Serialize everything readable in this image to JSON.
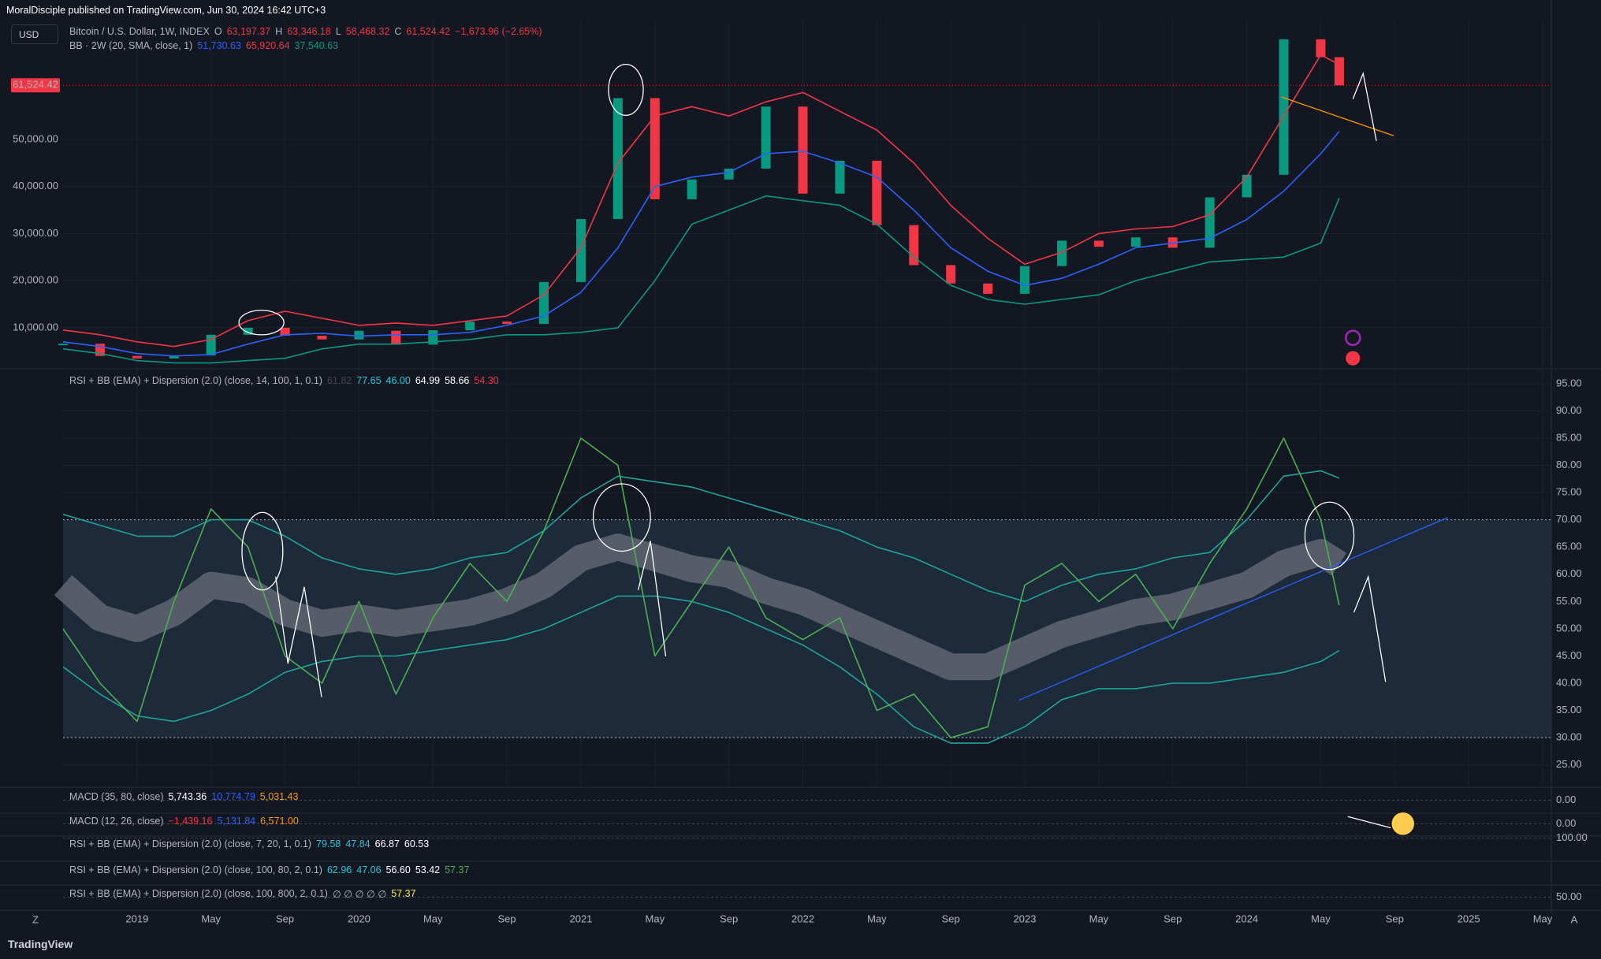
{
  "header": {
    "text": "MoralDisciple published on TradingView.com, Jun 30, 2024 16:42 UTC+3"
  },
  "toolbar": {
    "currency": "USD"
  },
  "footer": {
    "brand": "TradingView",
    "zoom_button": "Z",
    "scale_button": "A"
  },
  "chart_data": [
    {
      "type": "price",
      "x": [
        "2018-09",
        "2018-11",
        "2019-01",
        "2019-03",
        "2019-05",
        "2019-07",
        "2019-09",
        "2019-11",
        "2020-01",
        "2020-03",
        "2020-05",
        "2020-07",
        "2020-09",
        "2020-11",
        "2021-01",
        "2021-03",
        "2021-05",
        "2021-07",
        "2021-09",
        "2021-11",
        "2022-01",
        "2022-03",
        "2022-05",
        "2022-07",
        "2022-09",
        "2022-11",
        "2023-01",
        "2023-03",
        "2023-05",
        "2023-07",
        "2023-09",
        "2023-11",
        "2024-01",
        "2024-03",
        "2024-05",
        "2024-06"
      ],
      "xlim": [
        "2018-09",
        "2025-05"
      ],
      "xticks": [
        {
          "value": "2019-01",
          "label": "2019"
        },
        {
          "value": "2019-05",
          "label": "May"
        },
        {
          "value": "2019-09",
          "label": "Sep"
        },
        {
          "value": "2020-01",
          "label": "2020"
        },
        {
          "value": "2020-05",
          "label": "May"
        },
        {
          "value": "2020-09",
          "label": "Sep"
        },
        {
          "value": "2021-01",
          "label": "2021"
        },
        {
          "value": "2021-05",
          "label": "May"
        },
        {
          "value": "2021-09",
          "label": "Sep"
        },
        {
          "value": "2022-01",
          "label": "2022"
        },
        {
          "value": "2022-05",
          "label": "May"
        },
        {
          "value": "2022-09",
          "label": "Sep"
        },
        {
          "value": "2023-01",
          "label": "2023"
        },
        {
          "value": "2023-05",
          "label": "May"
        },
        {
          "value": "2023-09",
          "label": "Sep"
        },
        {
          "value": "2024-01",
          "label": "2024"
        },
        {
          "value": "2024-05",
          "label": "May"
        },
        {
          "value": "2024-09",
          "label": "Sep"
        },
        {
          "value": "2025-01",
          "label": "2025"
        },
        {
          "value": "2025-05",
          "label": "May"
        }
      ],
      "ylim": [
        1600,
        75300
      ],
      "yticks": [
        {
          "value": 10000,
          "label": "10,000.00"
        },
        {
          "value": 20000,
          "label": "20,000.00"
        },
        {
          "value": 30000,
          "label": "30,000.00"
        },
        {
          "value": 40000,
          "label": "40,000.00"
        },
        {
          "value": 50000,
          "label": "50,000.00"
        }
      ],
      "last_price": {
        "value": 61524.42,
        "label": "61,524.42"
      },
      "last_price_color": "#f23645",
      "up_color": "#089981",
      "down_color": "#f23645",
      "legend": [
        [
          {
            "text": "Bitcoin / U.S. Dollar, 1W, INDEX",
            "color": "#b2b5be"
          },
          {
            "text": "O",
            "color": "#b2b5be"
          },
          {
            "text": "63,197.37",
            "color": "#f23645"
          },
          {
            "text": "H",
            "color": "#b2b5be"
          },
          {
            "text": "63,346.18",
            "color": "#f23645"
          },
          {
            "text": "L",
            "color": "#b2b5be"
          },
          {
            "text": "58,468.32",
            "color": "#f23645"
          },
          {
            "text": "C",
            "color": "#b2b5be"
          },
          {
            "text": "61,524.42",
            "color": "#f23645"
          },
          {
            "text": "−1,673.96 (−2.65%)",
            "color": "#f23645"
          }
        ],
        [
          {
            "text": "BB · 2W (20, SMA, close, 1)",
            "color": "#b2b5be"
          },
          {
            "text": "51,730.63",
            "color": "#2962ff"
          },
          {
            "text": "65,920.64",
            "color": "#f23645"
          },
          {
            "text": "37,540.63",
            "color": "#089981"
          }
        ]
      ],
      "series": [
        {
          "style": "candles",
          "values": [
            6600,
            4000,
            3450,
            4100,
            8500,
            10000,
            8300,
            7500,
            9350,
            6400,
            9450,
            11300,
            10800,
            19700,
            33100,
            58800,
            37300,
            41500,
            43800,
            57000,
            38500,
            45500,
            31800,
            23300,
            19400,
            17200,
            23100,
            28500,
            27200,
            29200,
            27000,
            37700,
            42500,
            71300,
            67500,
            61524.42
          ]
        },
        {
          "color": "#2962ff",
          "values": [
            7000,
            6000,
            4500,
            4000,
            4300,
            6500,
            8500,
            8800,
            8200,
            8500,
            8500,
            9000,
            10500,
            12500,
            17500,
            27000,
            40000,
            42000,
            43000,
            47000,
            47500,
            45000,
            42000,
            35000,
            27000,
            22000,
            19000,
            20500,
            23500,
            27000,
            28000,
            29000,
            33000,
            39000,
            47000,
            51730.63
          ]
        },
        {
          "color": "#f23645",
          "values": [
            9500,
            8500,
            7000,
            6000,
            7500,
            11500,
            13500,
            12000,
            10500,
            11000,
            10500,
            11500,
            12500,
            17000,
            27000,
            45000,
            55000,
            57000,
            55000,
            58000,
            60000,
            56000,
            52000,
            45000,
            36000,
            29000,
            23500,
            26000,
            30000,
            31000,
            31500,
            34000,
            42000,
            55000,
            68000,
            65920.64
          ]
        },
        {
          "color": "#089981",
          "values": [
            5500,
            4500,
            3000,
            2500,
            2500,
            3000,
            3500,
            5500,
            6500,
            6500,
            7000,
            7500,
            8500,
            8500,
            9000,
            10000,
            20000,
            32000,
            35000,
            38000,
            37000,
            36000,
            32000,
            25000,
            19000,
            16000,
            15000,
            16000,
            17000,
            20000,
            22000,
            24000,
            24500,
            25000,
            28000,
            37540.63
          ]
        }
      ]
    },
    {
      "type": "line",
      "x": [
        "2018-09",
        "2018-11",
        "2019-01",
        "2019-03",
        "2019-05",
        "2019-07",
        "2019-09",
        "2019-11",
        "2020-01",
        "2020-03",
        "2020-05",
        "2020-07",
        "2020-09",
        "2020-11",
        "2021-01",
        "2021-03",
        "2021-05",
        "2021-07",
        "2021-09",
        "2021-11",
        "2022-01",
        "2022-03",
        "2022-05",
        "2022-07",
        "2022-09",
        "2022-11",
        "2023-01",
        "2023-03",
        "2023-05",
        "2023-07",
        "2023-09",
        "2023-11",
        "2024-01",
        "2024-03",
        "2024-05",
        "2024-06"
      ],
      "xlim": [
        "2018-09",
        "2025-05"
      ],
      "ylim": [
        21.2,
        97
      ],
      "yticks": [
        {
          "value": 25,
          "label": "25.00"
        },
        {
          "value": 30,
          "label": "30.00"
        },
        {
          "value": 35,
          "label": "35.00"
        },
        {
          "value": 40,
          "label": "40.00"
        },
        {
          "value": 45,
          "label": "45.00"
        },
        {
          "value": 50,
          "label": "50.00"
        },
        {
          "value": 55,
          "label": "55.00"
        },
        {
          "value": 60,
          "label": "60.00"
        },
        {
          "value": 65,
          "label": "65.00"
        },
        {
          "value": 70,
          "label": "70.00"
        },
        {
          "value": 75,
          "label": "75.00"
        },
        {
          "value": 80,
          "label": "80.00"
        },
        {
          "value": 85,
          "label": "85.00"
        },
        {
          "value": 90,
          "label": "90.00"
        },
        {
          "value": 95,
          "label": "95.00"
        }
      ],
      "bands": [
        30,
        70
      ],
      "band_fill": "#1c2a3a",
      "legend": [
        [
          {
            "text": "RSI + BB (EMA) + Dispersion (2.0) (close, 14, 100, 1, 0.1)",
            "color": "#b2b5be"
          },
          {
            "text": "61.82",
            "color": "#434651"
          },
          {
            "text": "77.65",
            "color": "#26c6da"
          },
          {
            "text": "46.00",
            "color": "#26c6da"
          },
          {
            "text": "64.99",
            "color": "#ffffff"
          },
          {
            "text": "58.66",
            "color": "#ffffff"
          },
          {
            "text": "54.30",
            "color": "#f23645"
          }
        ]
      ],
      "series": [
        {
          "style": "band",
          "color": "#6a6d78",
          "values": [
            58,
            52,
            50,
            53,
            58,
            57,
            53,
            51,
            52,
            51,
            52,
            53,
            55,
            58,
            63,
            65,
            63,
            61,
            60,
            57,
            55,
            52,
            49,
            46,
            43,
            43,
            46,
            49,
            51,
            53,
            54,
            56,
            58,
            62,
            64,
            61.82
          ]
        },
        {
          "color": "#1fa39b",
          "values": [
            71,
            69,
            67,
            67,
            70,
            70,
            67,
            63,
            61,
            60,
            61,
            63,
            64,
            68,
            74,
            78,
            77,
            76,
            74,
            72,
            70,
            68,
            65,
            63,
            60,
            57,
            55,
            58,
            60,
            61,
            63,
            64,
            70,
            78,
            79,
            77.65
          ]
        },
        {
          "color": "#1fa39b",
          "values": [
            43,
            38,
            34,
            33,
            35,
            38,
            42,
            44,
            45,
            45,
            46,
            47,
            48,
            50,
            53,
            56,
            56,
            55,
            53,
            50,
            47,
            43,
            38,
            32,
            29,
            29,
            32,
            37,
            39,
            39,
            40,
            40,
            41,
            42,
            44,
            46
          ]
        },
        {
          "color": "#4caf50",
          "values": [
            50,
            40,
            33,
            55,
            72,
            65,
            45,
            40,
            55,
            38,
            52,
            62,
            55,
            68,
            85,
            80,
            45,
            55,
            65,
            52,
            48,
            52,
            35,
            38,
            30,
            32,
            58,
            62,
            55,
            60,
            50,
            62,
            72,
            85,
            70,
            54.3
          ]
        }
      ]
    },
    {
      "type": "indicator",
      "ylim": [
        -15000,
        15000
      ],
      "yticks": [
        {
          "value": 0,
          "label": "0.00"
        }
      ],
      "legend": [
        [
          {
            "text": "MACD (35, 80, close)",
            "color": "#b2b5be"
          },
          {
            "text": "5,743.36",
            "color": "#ffffff"
          },
          {
            "text": "10,774.79",
            "color": "#2962ff"
          },
          {
            "text": "5,031.43",
            "color": "#ff9800"
          }
        ]
      ]
    },
    {
      "type": "indicator",
      "ylim": [
        -15000,
        15000
      ],
      "yticks": [
        {
          "value": 0,
          "label": "0.00"
        }
      ],
      "legend": [
        [
          {
            "text": "MACD (12, 26, close)",
            "color": "#b2b5be"
          },
          {
            "text": "−1,439.16",
            "color": "#f23645"
          },
          {
            "text": "5,131.84",
            "color": "#2962ff"
          },
          {
            "text": "6,571.00",
            "color": "#ff9800"
          }
        ]
      ]
    },
    {
      "type": "indicator",
      "ylim": [
        0,
        110
      ],
      "yticks": [
        {
          "value": 100,
          "label": "100.00"
        }
      ],
      "legend": [
        [
          {
            "text": "RSI + BB (EMA) + Dispersion (2.0) (close, 7, 20, 1, 0.1)",
            "color": "#b2b5be"
          },
          {
            "text": "79.58",
            "color": "#26c6da"
          },
          {
            "text": "47.84",
            "color": "#26c6da"
          },
          {
            "text": "66.87",
            "color": "#ffffff"
          },
          {
            "text": "60.53",
            "color": "#ffffff"
          }
        ]
      ]
    },
    {
      "type": "indicator",
      "ylim": [
        0,
        100
      ],
      "yticks": [],
      "legend": [
        [
          {
            "text": "RSI + BB (EMA) + Dispersion (2.0) (close, 100, 80, 2, 0.1)",
            "color": "#b2b5be"
          },
          {
            "text": "62.96",
            "color": "#26c6da"
          },
          {
            "text": "47.06",
            "color": "#26c6da"
          },
          {
            "text": "56.60",
            "color": "#ffffff"
          },
          {
            "text": "53.42",
            "color": "#ffffff"
          },
          {
            "text": "57.37",
            "color": "#4caf50"
          }
        ]
      ]
    },
    {
      "type": "indicator",
      "ylim": [
        20,
        80
      ],
      "yticks": [
        {
          "value": 50,
          "label": "50.00"
        }
      ],
      "legend": [
        [
          {
            "text": "RSI + BB (EMA) + Dispersion (2.0) (close, 100, 800, 2, 0.1)",
            "color": "#b2b5be"
          },
          {
            "text": "∅ ∅ ∅ ∅ ∅",
            "color": "#b2b5be"
          },
          {
            "text": "57.37",
            "color": "#ffeb3b"
          }
        ]
      ]
    }
  ]
}
